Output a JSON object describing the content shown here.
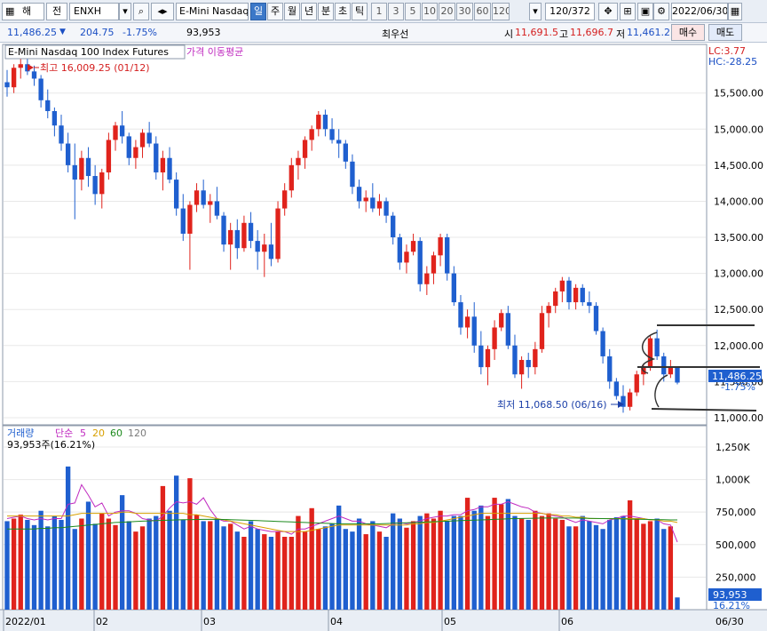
{
  "toolbar": {
    "market_select": "해",
    "category_select": "전",
    "code_input": "ENXH",
    "product_name": "E-Mini Nasdaq",
    "periods": [
      "일",
      "주",
      "월",
      "년",
      "분",
      "초",
      "틱"
    ],
    "active_period": "일",
    "intervals": [
      "1",
      "3",
      "5",
      "10",
      "20",
      "30",
      "60",
      "120"
    ],
    "count_display": "120/372",
    "date_input": "2022/06/30"
  },
  "infobar": {
    "price": "11,486.25",
    "change": "204.75",
    "change_pct": "-1.75%",
    "volume": "93,953",
    "order_label": "최우선",
    "open_label": "시",
    "open": "11,691.5",
    "high_label": "고",
    "high": "11,696.7",
    "low_label": "저",
    "low": "11,461.2",
    "buy_label": "매수",
    "sell_label": "매도"
  },
  "price_panel": {
    "title": "E-Mini Nasdaq 100 Index Futures",
    "indicator_label": "가격 이동평균",
    "lc_label": "LC:3.77",
    "hc_label": "HC:-28.25",
    "max_annotation": "최고 16,009.25 (01/12)",
    "min_annotation": "최저 11,068.50 (06/16)",
    "current_price_tag": "11,486.25",
    "current_pct_tag": "-1.75%",
    "y_ticks": [
      "15,500.00",
      "15,000.00",
      "14,500.00",
      "14,000.00",
      "13,500.00",
      "13,000.00",
      "12,500.00",
      "12,000.00",
      "11,500.00",
      "11,000.00"
    ]
  },
  "volume_panel": {
    "title": "거래량",
    "ma_label": "단순",
    "ma_periods": [
      "5",
      "20",
      "60",
      "120"
    ],
    "value_label": "93,953주(16.21%)",
    "y_ticks": [
      "1,250K",
      "1,000K",
      "750,000",
      "500,000",
      "250,000"
    ],
    "current_tag": "93,953",
    "current_pct_tag": "16.21%"
  },
  "x_axis": {
    "labels": [
      "2022/01",
      "02",
      "03",
      "04",
      "05",
      "06"
    ],
    "end_label": "06/30"
  },
  "colors": {
    "up": "#e0231c",
    "down": "#1f5fcf",
    "ma5": "#c02bc0",
    "ma20": "#d8a000",
    "ma60": "#1d8a1d",
    "ma120": "#7a7a7a"
  },
  "chart_data": {
    "type": "candlestick",
    "x_start": "2022/01",
    "x_end": "06/30",
    "ylim_price": [
      10950,
      16100
    ],
    "ylim_volume": [
      0,
      1400000
    ],
    "candles": [
      [
        15650,
        15820,
        15450,
        15580
      ],
      [
        15580,
        15900,
        15500,
        15850
      ],
      [
        15850,
        16009,
        15700,
        15900
      ],
      [
        15900,
        15980,
        15750,
        15800
      ],
      [
        15800,
        15880,
        15600,
        15700
      ],
      [
        15700,
        15750,
        15300,
        15400
      ],
      [
        15400,
        15550,
        15150,
        15250
      ],
      [
        15250,
        15300,
        14900,
        15050
      ],
      [
        15050,
        15200,
        14700,
        14800
      ],
      [
        14800,
        14950,
        14400,
        14500
      ],
      [
        14500,
        14800,
        13750,
        14300
      ],
      [
        14300,
        14700,
        14150,
        14600
      ],
      [
        14600,
        14750,
        14200,
        14350
      ],
      [
        14350,
        14500,
        13950,
        14100
      ],
      [
        14100,
        14450,
        13900,
        14400
      ],
      [
        14400,
        14950,
        14300,
        14850
      ],
      [
        14850,
        15100,
        14700,
        15050
      ],
      [
        15050,
        15250,
        14800,
        14900
      ],
      [
        14900,
        14950,
        14500,
        14600
      ],
      [
        14600,
        14850,
        14450,
        14750
      ],
      [
        14750,
        15000,
        14600,
        14950
      ],
      [
        14950,
        15100,
        14750,
        14800
      ],
      [
        14800,
        14900,
        14300,
        14400
      ],
      [
        14400,
        14700,
        14150,
        14600
      ],
      [
        14600,
        14750,
        14250,
        14300
      ],
      [
        14300,
        14400,
        13800,
        13900
      ],
      [
        13900,
        14100,
        13450,
        13550
      ],
      [
        13550,
        14000,
        13050,
        13950
      ],
      [
        13950,
        14250,
        13850,
        14150
      ],
      [
        14150,
        14300,
        13900,
        13950
      ],
      [
        13950,
        14100,
        13700,
        14000
      ],
      [
        14000,
        14200,
        13750,
        13800
      ],
      [
        13800,
        13850,
        13300,
        13400
      ],
      [
        13400,
        13700,
        13050,
        13600
      ],
      [
        13600,
        13750,
        13200,
        13350
      ],
      [
        13350,
        13800,
        13300,
        13700
      ],
      [
        13700,
        13850,
        13350,
        13450
      ],
      [
        13450,
        13600,
        13050,
        13300
      ],
      [
        13300,
        13550,
        12950,
        13400
      ],
      [
        13400,
        13700,
        13100,
        13200
      ],
      [
        13200,
        14000,
        13150,
        13900
      ],
      [
        13900,
        14250,
        13800,
        14150
      ],
      [
        14150,
        14600,
        14050,
        14500
      ],
      [
        14500,
        14700,
        14300,
        14600
      ],
      [
        14600,
        14900,
        14450,
        14850
      ],
      [
        14850,
        15050,
        14700,
        15000
      ],
      [
        15000,
        15250,
        14900,
        15200
      ],
      [
        15200,
        15270,
        14900,
        15000
      ],
      [
        15000,
        15150,
        14800,
        14850
      ],
      [
        14850,
        15000,
        14600,
        14800
      ],
      [
        14800,
        14850,
        14450,
        14550
      ],
      [
        14550,
        14650,
        14100,
        14200
      ],
      [
        14200,
        14300,
        13900,
        14000
      ],
      [
        14000,
        14150,
        13850,
        14050
      ],
      [
        14050,
        14250,
        13850,
        13900
      ],
      [
        13900,
        14100,
        13800,
        14000
      ],
      [
        14000,
        14050,
        13700,
        13800
      ],
      [
        13800,
        13850,
        13400,
        13500
      ],
      [
        13500,
        13550,
        13050,
        13150
      ],
      [
        13150,
        13400,
        13000,
        13300
      ],
      [
        13300,
        13550,
        13250,
        13450
      ],
      [
        13450,
        13500,
        12750,
        12850
      ],
      [
        12850,
        13100,
        12700,
        13000
      ],
      [
        13000,
        13300,
        12850,
        13250
      ],
      [
        13250,
        13550,
        13100,
        13500
      ],
      [
        13500,
        13550,
        12900,
        13000
      ],
      [
        13000,
        13100,
        12550,
        12600
      ],
      [
        12600,
        12700,
        12150,
        12250
      ],
      [
        12250,
        12500,
        12100,
        12400
      ],
      [
        12400,
        12600,
        11900,
        12000
      ],
      [
        12000,
        12200,
        11600,
        11700
      ],
      [
        11700,
        12000,
        11450,
        11950
      ],
      [
        11950,
        12350,
        11800,
        12250
      ],
      [
        12250,
        12500,
        12200,
        12450
      ],
      [
        12450,
        12550,
        11950,
        12000
      ],
      [
        12000,
        12150,
        11550,
        11600
      ],
      [
        11600,
        11850,
        11400,
        11800
      ],
      [
        11800,
        11900,
        11550,
        11700
      ],
      [
        11700,
        12050,
        11600,
        11950
      ],
      [
        11950,
        12550,
        11900,
        12450
      ],
      [
        12450,
        12600,
        12250,
        12550
      ],
      [
        12550,
        12800,
        12450,
        12750
      ],
      [
        12750,
        12950,
        12600,
        12900
      ],
      [
        12900,
        12950,
        12500,
        12600
      ],
      [
        12600,
        12850,
        12500,
        12800
      ],
      [
        12800,
        12850,
        12550,
        12600
      ],
      [
        12600,
        12750,
        12450,
        12550
      ],
      [
        12550,
        12600,
        12150,
        12200
      ],
      [
        12200,
        12250,
        11750,
        11850
      ],
      [
        11850,
        11950,
        11400,
        11500
      ],
      [
        11500,
        11550,
        11250,
        11300
      ],
      [
        11300,
        11450,
        11068.5,
        11150
      ],
      [
        11150,
        11400,
        11100,
        11350
      ],
      [
        11350,
        11650,
        11300,
        11600
      ],
      [
        11600,
        11750,
        11450,
        11700
      ],
      [
        11700,
        12150,
        11650,
        12100
      ],
      [
        12100,
        12220,
        11800,
        11850
      ],
      [
        11850,
        11900,
        11500,
        11600
      ],
      [
        11600,
        11800,
        11550,
        11700
      ],
      [
        11691.5,
        11696.75,
        11461.25,
        11486.25
      ]
    ],
    "volumes": [
      680,
      700,
      730,
      690,
      650,
      760,
      640,
      720,
      690,
      1100,
      620,
      700,
      830,
      660,
      740,
      700,
      650,
      880,
      680,
      600,
      640,
      700,
      720,
      950,
      760,
      1030,
      690,
      1010,
      730,
      680,
      680,
      700,
      640,
      660,
      600,
      560,
      680,
      620,
      580,
      560,
      600,
      560,
      560,
      720,
      600,
      780,
      620,
      640,
      660,
      800,
      620,
      600,
      700,
      580,
      680,
      600,
      560,
      740,
      700,
      630,
      680,
      720,
      740,
      700,
      760,
      680,
      720,
      720,
      860,
      760,
      800,
      720,
      860,
      810,
      850,
      720,
      700,
      690,
      760,
      720,
      740,
      700,
      690,
      640,
      640,
      720,
      680,
      650,
      620,
      690,
      710,
      720,
      840,
      700,
      660,
      680,
      700,
      620,
      640,
      94
    ],
    "ma5": [
      700,
      710,
      720,
      700,
      690,
      700,
      690,
      700,
      700,
      810,
      820,
      960,
      880,
      790,
      820,
      720,
      750,
      760,
      760,
      740,
      700,
      690,
      680,
      720,
      780,
      830,
      820,
      830,
      810,
      860,
      770,
      700,
      680,
      680,
      650,
      620,
      640,
      620,
      610,
      600,
      600,
      600,
      580,
      620,
      620,
      640,
      660,
      680,
      700,
      720,
      700,
      680,
      680,
      660,
      650,
      640,
      630,
      660,
      670,
      660,
      670,
      680,
      700,
      710,
      720,
      720,
      730,
      730,
      760,
      770,
      790,
      790,
      810,
      810,
      830,
      810,
      790,
      780,
      750,
      740,
      730,
      720,
      710,
      690,
      670,
      690,
      680,
      670,
      660,
      690,
      700,
      720,
      720,
      710,
      700,
      690,
      690,
      660,
      650,
      520
    ],
    "ma20": [
      720,
      720,
      720,
      720,
      720,
      720,
      720,
      720,
      720,
      720,
      730,
      740,
      740,
      740,
      740,
      740,
      740,
      750,
      750,
      740,
      740,
      740,
      740,
      740,
      740,
      740,
      740,
      730,
      730,
      720,
      710,
      700,
      690,
      680,
      670,
      660,
      650,
      640,
      630,
      620,
      610,
      600,
      600,
      600,
      600,
      610,
      620,
      630,
      640,
      650,
      650,
      650,
      650,
      650,
      650,
      650,
      650,
      650,
      650,
      650,
      660,
      660,
      670,
      670,
      680,
      690,
      700,
      710,
      720,
      730,
      740,
      740,
      740,
      740,
      740,
      740,
      740,
      740,
      740,
      740,
      730,
      730,
      720,
      720,
      710,
      710,
      700,
      700,
      700,
      700,
      700,
      700,
      700,
      700,
      700,
      690,
      690,
      680,
      680,
      670
    ],
    "ma60": [
      620,
      620,
      620,
      620,
      620,
      625,
      625,
      630,
      630,
      635,
      640,
      645,
      650,
      655,
      660,
      665,
      670,
      672,
      675,
      678,
      680,
      682,
      684,
      686,
      688,
      690,
      691,
      692,
      693,
      694,
      694,
      694,
      693,
      692,
      690,
      688,
      686,
      684,
      682,
      680,
      678,
      676,
      674,
      672,
      670,
      668,
      666,
      664,
      662,
      660,
      660,
      660,
      660,
      660,
      660,
      660,
      662,
      664,
      666,
      668,
      670,
      672,
      674,
      676,
      678,
      680,
      682,
      684,
      686,
      688,
      690,
      692,
      694,
      696,
      698,
      700,
      701,
      702,
      703,
      704,
      704,
      704,
      704,
      704,
      704,
      703,
      702,
      701,
      700,
      699,
      698,
      697,
      696,
      695,
      694,
      693,
      692,
      691,
      690,
      690
    ]
  }
}
